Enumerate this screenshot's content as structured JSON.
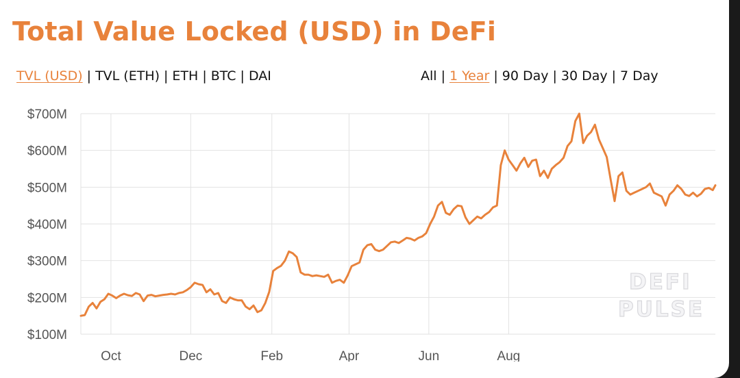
{
  "title": "Total Value Locked (USD) in DeFi",
  "metric_tabs": [
    {
      "label": "TVL (USD)",
      "active": true
    },
    {
      "label": "TVL (ETH)",
      "active": false
    },
    {
      "label": "ETH",
      "active": false
    },
    {
      "label": "BTC",
      "active": false
    },
    {
      "label": "DAI",
      "active": false
    }
  ],
  "range_tabs": [
    {
      "label": "All",
      "active": false
    },
    {
      "label": "1 Year",
      "active": true
    },
    {
      "label": "90 Day",
      "active": false
    },
    {
      "label": "30 Day",
      "active": false
    },
    {
      "label": "7 Day",
      "active": false
    }
  ],
  "watermark": [
    "DEFI",
    "PULSE"
  ],
  "colors": {
    "accent": "#e8823b",
    "line": "#e8823b",
    "grid": "#e2e2e2",
    "tick": "#555555"
  },
  "chart_data": {
    "type": "line",
    "series": [
      {
        "values": [
          [
            0,
            150
          ],
          [
            3,
            152
          ],
          [
            6,
            175
          ],
          [
            9,
            185
          ],
          [
            12,
            170
          ],
          [
            15,
            188
          ],
          [
            18,
            195
          ],
          [
            21,
            210
          ],
          [
            24,
            205
          ],
          [
            27,
            198
          ],
          [
            30,
            205
          ],
          [
            33,
            210
          ],
          [
            36,
            206
          ],
          [
            39,
            204
          ],
          [
            42,
            212
          ],
          [
            45,
            208
          ],
          [
            48,
            190
          ],
          [
            51,
            205
          ],
          [
            54,
            207
          ],
          [
            57,
            203
          ],
          [
            60,
            205
          ],
          [
            63,
            207
          ],
          [
            66,
            208
          ],
          [
            69,
            210
          ],
          [
            72,
            208
          ],
          [
            75,
            212
          ],
          [
            78,
            214
          ],
          [
            81,
            220
          ],
          [
            84,
            228
          ],
          [
            87,
            240
          ],
          [
            90,
            236
          ],
          [
            93,
            234
          ],
          [
            96,
            214
          ],
          [
            99,
            222
          ],
          [
            102,
            208
          ],
          [
            105,
            212
          ],
          [
            108,
            190
          ],
          [
            111,
            185
          ],
          [
            114,
            200
          ],
          [
            117,
            195
          ],
          [
            120,
            192
          ],
          [
            123,
            192
          ],
          [
            126,
            175
          ],
          [
            129,
            168
          ],
          [
            132,
            178
          ],
          [
            135,
            160
          ],
          [
            138,
            165
          ],
          [
            141,
            185
          ],
          [
            144,
            215
          ],
          [
            147,
            272
          ],
          [
            150,
            280
          ],
          [
            153,
            286
          ],
          [
            156,
            300
          ],
          [
            159,
            325
          ],
          [
            162,
            320
          ],
          [
            165,
            310
          ],
          [
            168,
            268
          ],
          [
            171,
            262
          ],
          [
            174,
            262
          ],
          [
            177,
            258
          ],
          [
            180,
            260
          ],
          [
            183,
            258
          ],
          [
            186,
            256
          ],
          [
            189,
            262
          ],
          [
            192,
            240
          ],
          [
            195,
            245
          ],
          [
            198,
            248
          ],
          [
            201,
            240
          ],
          [
            204,
            260
          ],
          [
            207,
            285
          ],
          [
            210,
            290
          ],
          [
            213,
            295
          ],
          [
            216,
            330
          ],
          [
            219,
            342
          ],
          [
            222,
            345
          ],
          [
            225,
            330
          ],
          [
            228,
            326
          ],
          [
            231,
            330
          ],
          [
            234,
            340
          ],
          [
            237,
            350
          ],
          [
            240,
            352
          ],
          [
            243,
            348
          ],
          [
            246,
            355
          ],
          [
            249,
            362
          ],
          [
            252,
            360
          ],
          [
            255,
            355
          ],
          [
            258,
            362
          ],
          [
            261,
            366
          ],
          [
            264,
            375
          ],
          [
            267,
            400
          ],
          [
            270,
            420
          ],
          [
            273,
            450
          ],
          [
            276,
            460
          ],
          [
            279,
            430
          ],
          [
            282,
            425
          ],
          [
            285,
            440
          ],
          [
            288,
            450
          ],
          [
            291,
            448
          ],
          [
            294,
            418
          ],
          [
            297,
            400
          ],
          [
            300,
            410
          ],
          [
            303,
            420
          ],
          [
            306,
            415
          ],
          [
            309,
            425
          ],
          [
            312,
            432
          ],
          [
            315,
            445
          ],
          [
            318,
            450
          ],
          [
            321,
            560
          ],
          [
            324,
            600
          ],
          [
            327,
            575
          ],
          [
            330,
            560
          ],
          [
            333,
            545
          ],
          [
            336,
            565
          ],
          [
            339,
            580
          ],
          [
            342,
            555
          ],
          [
            345,
            572
          ],
          [
            348,
            575
          ],
          [
            351,
            530
          ],
          [
            354,
            545
          ],
          [
            357,
            525
          ],
          [
            360,
            550
          ],
          [
            363,
            560
          ],
          [
            366,
            568
          ],
          [
            369,
            580
          ],
          [
            372,
            612
          ],
          [
            375,
            625
          ],
          [
            378,
            680
          ],
          [
            381,
            700
          ],
          [
            384,
            620
          ],
          [
            387,
            640
          ],
          [
            390,
            650
          ],
          [
            393,
            670
          ],
          [
            396,
            630
          ],
          [
            399,
            606
          ],
          [
            402,
            582
          ],
          [
            405,
            520
          ],
          [
            408,
            462
          ],
          [
            411,
            530
          ],
          [
            414,
            540
          ],
          [
            417,
            490
          ],
          [
            420,
            480
          ],
          [
            423,
            485
          ],
          [
            426,
            490
          ],
          [
            429,
            495
          ],
          [
            432,
            500
          ],
          [
            435,
            510
          ],
          [
            438,
            485
          ],
          [
            441,
            480
          ],
          [
            444,
            475
          ],
          [
            447,
            450
          ],
          [
            450,
            480
          ],
          [
            453,
            490
          ],
          [
            456,
            505
          ],
          [
            459,
            495
          ],
          [
            462,
            480
          ],
          [
            465,
            476
          ],
          [
            468,
            485
          ],
          [
            471,
            475
          ],
          [
            474,
            482
          ],
          [
            477,
            495
          ],
          [
            480,
            498
          ],
          [
            483,
            492
          ],
          [
            485,
            505
          ]
        ]
      }
    ],
    "x_start": "2019-09-08",
    "x_ticks": [
      {
        "label": "Oct",
        "day": 23
      },
      {
        "label": "Dec",
        "day": 84
      },
      {
        "label": "Feb",
        "day": 146
      },
      {
        "label": "Apr",
        "day": 205
      },
      {
        "label": "Jun",
        "day": 266
      },
      {
        "label": "Aug",
        "day": 327
      }
    ],
    "y_ticks": [
      "$100M",
      "$200M",
      "$300M",
      "$400M",
      "$500M",
      "$600M",
      "$700M"
    ],
    "y_tick_values": [
      100,
      200,
      300,
      400,
      500,
      600,
      700
    ],
    "xlim": [
      0,
      485
    ],
    "ylim": [
      100,
      700
    ],
    "ylabel": "",
    "xlabel": "",
    "grid": true
  }
}
